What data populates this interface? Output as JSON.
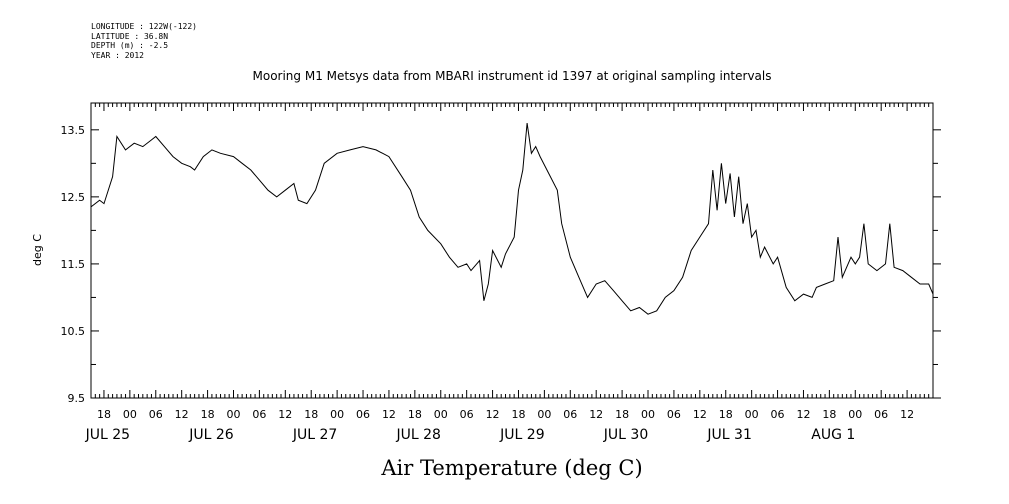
{
  "meta": {
    "longitude": "LONGITUDE : 122W(-122)",
    "latitude": "LATITUDE : 36.8N",
    "depth": "DEPTH (m) : -2.5",
    "year": "YEAR : 2012"
  },
  "chart_data": {
    "type": "line",
    "title": "Mooring M1 Metsys data from MBARI instrument id 1397 at original sampling intervals",
    "xlabel": "Air Temperature (deg C)",
    "ylabel": "deg C",
    "x_start": "2012-07-24T15:00",
    "x_end": "2012-08-01T18:00",
    "ylim": [
      9.5,
      13.9
    ],
    "yticks": [
      9.5,
      10.5,
      11.5,
      12.5,
      13.5
    ],
    "hour_labels": [
      "18",
      "00",
      "06",
      "12",
      "18",
      "00",
      "06",
      "12",
      "18",
      "00",
      "06",
      "12",
      "18",
      "00",
      "06",
      "12",
      "18",
      "00",
      "06",
      "12",
      "18",
      "00",
      "06",
      "12",
      "18",
      "00",
      "06",
      "12",
      "18",
      "00",
      "06",
      "12"
    ],
    "date_labels": [
      "JUL 25",
      "JUL 26",
      "JUL 27",
      "JUL 28",
      "JUL 29",
      "JUL 30",
      "JUL 31",
      "AUG  1"
    ],
    "grid": false,
    "series": [
      {
        "color": "#000000",
        "points": [
          [
            "2012-07-24T15:00",
            12.35
          ],
          [
            "2012-07-24T17:00",
            12.45
          ],
          [
            "2012-07-24T18:00",
            12.4
          ],
          [
            "2012-07-24T20:00",
            12.8
          ],
          [
            "2012-07-24T21:00",
            13.4
          ],
          [
            "2012-07-24T23:00",
            13.2
          ],
          [
            "2012-07-25T01:00",
            13.3
          ],
          [
            "2012-07-25T03:00",
            13.25
          ],
          [
            "2012-07-25T05:00",
            13.35
          ],
          [
            "2012-07-25T06:00",
            13.4
          ],
          [
            "2012-07-25T08:00",
            13.25
          ],
          [
            "2012-07-25T10:00",
            13.1
          ],
          [
            "2012-07-25T12:00",
            13.0
          ],
          [
            "2012-07-25T14:00",
            12.95
          ],
          [
            "2012-07-25T15:00",
            12.9
          ],
          [
            "2012-07-25T17:00",
            13.1
          ],
          [
            "2012-07-25T19:00",
            13.2
          ],
          [
            "2012-07-25T21:00",
            13.15
          ],
          [
            "2012-07-26T00:00",
            13.1
          ],
          [
            "2012-07-26T02:00",
            13.0
          ],
          [
            "2012-07-26T04:00",
            12.9
          ],
          [
            "2012-07-26T06:00",
            12.75
          ],
          [
            "2012-07-26T08:00",
            12.6
          ],
          [
            "2012-07-26T10:00",
            12.5
          ],
          [
            "2012-07-26T12:00",
            12.6
          ],
          [
            "2012-07-26T14:00",
            12.7
          ],
          [
            "2012-07-26T15:00",
            12.45
          ],
          [
            "2012-07-26T17:00",
            12.4
          ],
          [
            "2012-07-26T19:00",
            12.6
          ],
          [
            "2012-07-26T21:00",
            13.0
          ],
          [
            "2012-07-27T00:00",
            13.15
          ],
          [
            "2012-07-27T03:00",
            13.2
          ],
          [
            "2012-07-27T06:00",
            13.25
          ],
          [
            "2012-07-27T09:00",
            13.2
          ],
          [
            "2012-07-27T12:00",
            13.1
          ],
          [
            "2012-07-27T15:00",
            12.8
          ],
          [
            "2012-07-27T17:00",
            12.6
          ],
          [
            "2012-07-27T19:00",
            12.2
          ],
          [
            "2012-07-27T21:00",
            12.0
          ],
          [
            "2012-07-28T00:00",
            11.8
          ],
          [
            "2012-07-28T02:00",
            11.6
          ],
          [
            "2012-07-28T04:00",
            11.45
          ],
          [
            "2012-07-28T06:00",
            11.5
          ],
          [
            "2012-07-28T07:00",
            11.4
          ],
          [
            "2012-07-28T09:00",
            11.55
          ],
          [
            "2012-07-28T10:00",
            10.95
          ],
          [
            "2012-07-28T11:00",
            11.2
          ],
          [
            "2012-07-28T12:00",
            11.7
          ],
          [
            "2012-07-28T14:00",
            11.45
          ],
          [
            "2012-07-28T15:00",
            11.65
          ],
          [
            "2012-07-28T17:00",
            11.9
          ],
          [
            "2012-07-28T18:00",
            12.6
          ],
          [
            "2012-07-28T19:00",
            12.9
          ],
          [
            "2012-07-28T20:00",
            13.6
          ],
          [
            "2012-07-28T21:00",
            13.15
          ],
          [
            "2012-07-28T22:00",
            13.25
          ],
          [
            "2012-07-28T23:00",
            13.1
          ],
          [
            "2012-07-29T01:00",
            12.85
          ],
          [
            "2012-07-29T03:00",
            12.6
          ],
          [
            "2012-07-29T04:00",
            12.1
          ],
          [
            "2012-07-29T06:00",
            11.6
          ],
          [
            "2012-07-29T08:00",
            11.3
          ],
          [
            "2012-07-29T10:00",
            11.0
          ],
          [
            "2012-07-29T12:00",
            11.2
          ],
          [
            "2012-07-29T14:00",
            11.25
          ],
          [
            "2012-07-29T16:00",
            11.1
          ],
          [
            "2012-07-29T18:00",
            10.95
          ],
          [
            "2012-07-29T20:00",
            10.8
          ],
          [
            "2012-07-29T22:00",
            10.85
          ],
          [
            "2012-07-30T00:00",
            10.75
          ],
          [
            "2012-07-30T02:00",
            10.8
          ],
          [
            "2012-07-30T04:00",
            11.0
          ],
          [
            "2012-07-30T06:00",
            11.1
          ],
          [
            "2012-07-30T08:00",
            11.3
          ],
          [
            "2012-07-30T10:00",
            11.7
          ],
          [
            "2012-07-30T12:00",
            11.9
          ],
          [
            "2012-07-30T14:00",
            12.1
          ],
          [
            "2012-07-30T15:00",
            12.9
          ],
          [
            "2012-07-30T16:00",
            12.3
          ],
          [
            "2012-07-30T17:00",
            13.0
          ],
          [
            "2012-07-30T18:00",
            12.4
          ],
          [
            "2012-07-30T19:00",
            12.85
          ],
          [
            "2012-07-30T20:00",
            12.2
          ],
          [
            "2012-07-30T21:00",
            12.8
          ],
          [
            "2012-07-30T22:00",
            12.1
          ],
          [
            "2012-07-30T23:00",
            12.4
          ],
          [
            "2012-07-31T00:00",
            11.9
          ],
          [
            "2012-07-31T01:00",
            12.0
          ],
          [
            "2012-07-31T02:00",
            11.6
          ],
          [
            "2012-07-31T03:00",
            11.75
          ],
          [
            "2012-07-31T05:00",
            11.5
          ],
          [
            "2012-07-31T06:00",
            11.6
          ],
          [
            "2012-07-31T08:00",
            11.15
          ],
          [
            "2012-07-31T10:00",
            10.95
          ],
          [
            "2012-07-31T12:00",
            11.05
          ],
          [
            "2012-07-31T14:00",
            11.0
          ],
          [
            "2012-07-31T15:00",
            11.15
          ],
          [
            "2012-07-31T17:00",
            11.2
          ],
          [
            "2012-07-31T19:00",
            11.25
          ],
          [
            "2012-07-31T20:00",
            11.9
          ],
          [
            "2012-07-31T21:00",
            11.3
          ],
          [
            "2012-07-31T23:00",
            11.6
          ],
          [
            "2012-08-01T00:00",
            11.5
          ],
          [
            "2012-08-01T01:00",
            11.6
          ],
          [
            "2012-08-01T02:00",
            12.1
          ],
          [
            "2012-08-01T03:00",
            11.5
          ],
          [
            "2012-08-01T05:00",
            11.4
          ],
          [
            "2012-08-01T07:00",
            11.5
          ],
          [
            "2012-08-01T08:00",
            12.1
          ],
          [
            "2012-08-01T09:00",
            11.45
          ],
          [
            "2012-08-01T11:00",
            11.4
          ],
          [
            "2012-08-01T13:00",
            11.3
          ],
          [
            "2012-08-01T15:00",
            11.2
          ],
          [
            "2012-08-01T17:00",
            11.2
          ],
          [
            "2012-08-01T18:00",
            11.05
          ]
        ]
      }
    ]
  }
}
